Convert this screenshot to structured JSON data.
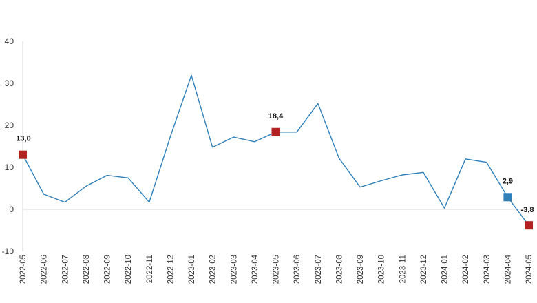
{
  "chart_data": {
    "type": "line",
    "title": "",
    "xlabel": "",
    "ylabel": "",
    "ylim": [
      -10,
      40
    ],
    "yticks": [
      "40",
      "30",
      "20",
      "10",
      "0",
      "-10"
    ],
    "grid": false,
    "categories": [
      "2022-05",
      "2022-06",
      "2022-07",
      "2022-08",
      "2022-09",
      "2022-10",
      "2022-11",
      "2022-12",
      "2023-01",
      "2023-02",
      "2023-03",
      "2023-04",
      "2023-05",
      "2023-06",
      "2023-07",
      "2023-08",
      "2023-09",
      "2023-10",
      "2023-11",
      "2023-12",
      "2024-01",
      "2024-02",
      "2024-03",
      "2024-04",
      "2024-05"
    ],
    "series": [
      {
        "values": [
          13.0,
          3.6,
          1.7,
          5.5,
          8.1,
          7.5,
          1.7,
          17.3,
          31.9,
          14.8,
          17.2,
          16.1,
          18.4,
          18.4,
          25.2,
          12.2,
          5.3,
          6.8,
          8.2,
          8.8,
          0.3,
          12.0,
          11.2,
          2.9,
          -3.8
        ],
        "color": "#2e7fb8"
      }
    ],
    "highlighted_points": [
      {
        "category": "2022-05",
        "value": 13.0,
        "label": "13,0",
        "color": "#b22222"
      },
      {
        "category": "2023-05",
        "value": 18.4,
        "label": "18,4",
        "color": "#b22222"
      },
      {
        "category": "2024-04",
        "value": 2.9,
        "label": "2,9",
        "color": "#2e7fb8"
      },
      {
        "category": "2024-05",
        "value": -3.8,
        "label": "-3,8",
        "color": "#b22222"
      }
    ],
    "axis_color": "#d9d9d9"
  }
}
